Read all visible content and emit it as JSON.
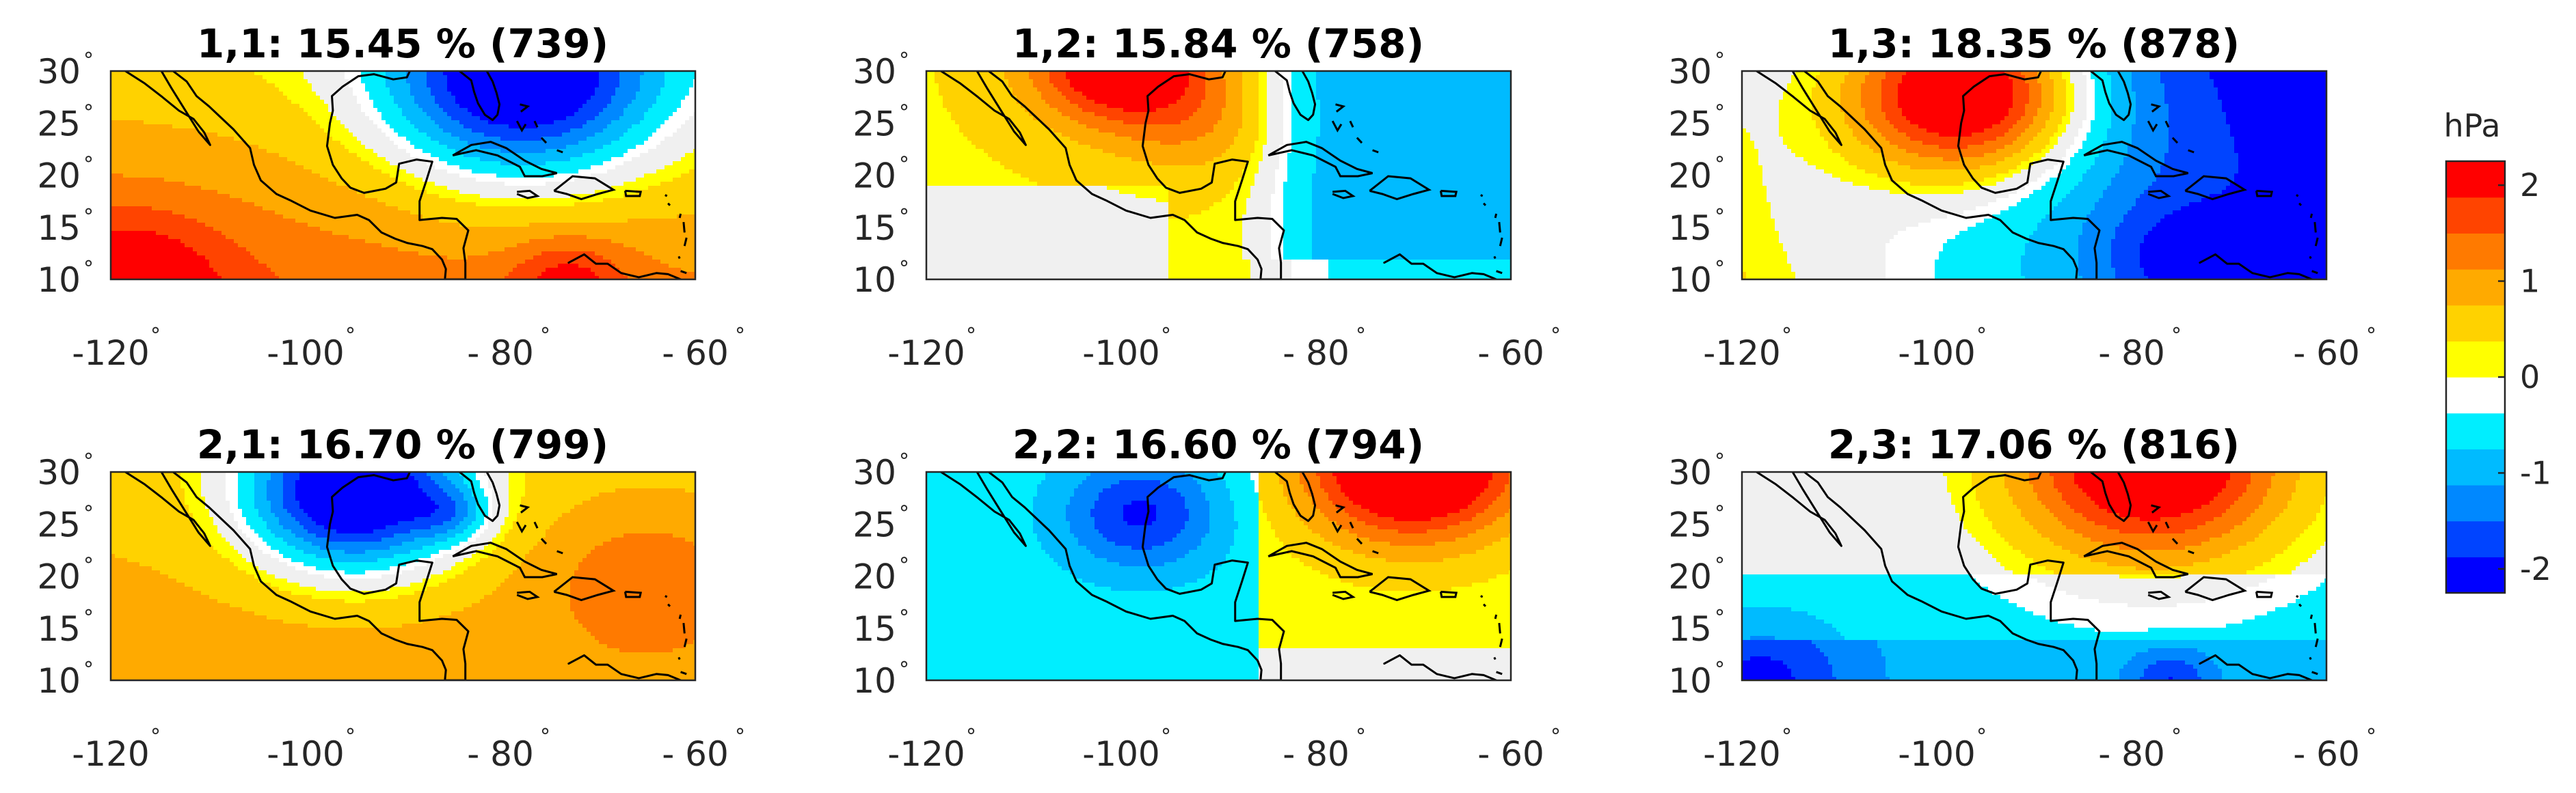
{
  "figure": {
    "colorbar": {
      "unit_label": "hPa",
      "min": -2.25,
      "max": 2.25,
      "tick_values": [
        2,
        1,
        0,
        -1,
        -2
      ],
      "tick_labels": [
        "2",
        "1",
        "0",
        "-1",
        "-2"
      ],
      "colors": [
        "#0000ff",
        "#0044ff",
        "#0088ff",
        "#00bbff",
        "#00eeff",
        "#ffffff",
        "#ffff00",
        "#ffd200",
        "#ffaa00",
        "#ff7a00",
        "#ff4400",
        "#ff0000"
      ],
      "neutral_color": "#f0f0f0"
    },
    "map_extent": {
      "lon": [
        -120,
        -60
      ],
      "lat": [
        10,
        30
      ]
    },
    "lon_tick_labels": [
      "-120",
      "-100",
      "- 80",
      "- 60"
    ],
    "lat_tick_labels": [
      "30",
      "25",
      "20",
      "15",
      "10"
    ],
    "degree_symbol": "°",
    "panels": [
      {
        "title": "1,1:   15.45 % (739)",
        "field": "p11"
      },
      {
        "title": "1,2:   15.84 % (758)",
        "field": "p12"
      },
      {
        "title": "1,3:   18.35 % (878)",
        "field": "p13"
      },
      {
        "title": "2,1:   16.70 % (799)",
        "field": "p21"
      },
      {
        "title": "2,2:   16.60 % (794)",
        "field": "p22"
      },
      {
        "title": "2,3:   17.06 % (816)",
        "field": "p23"
      }
    ]
  }
}
